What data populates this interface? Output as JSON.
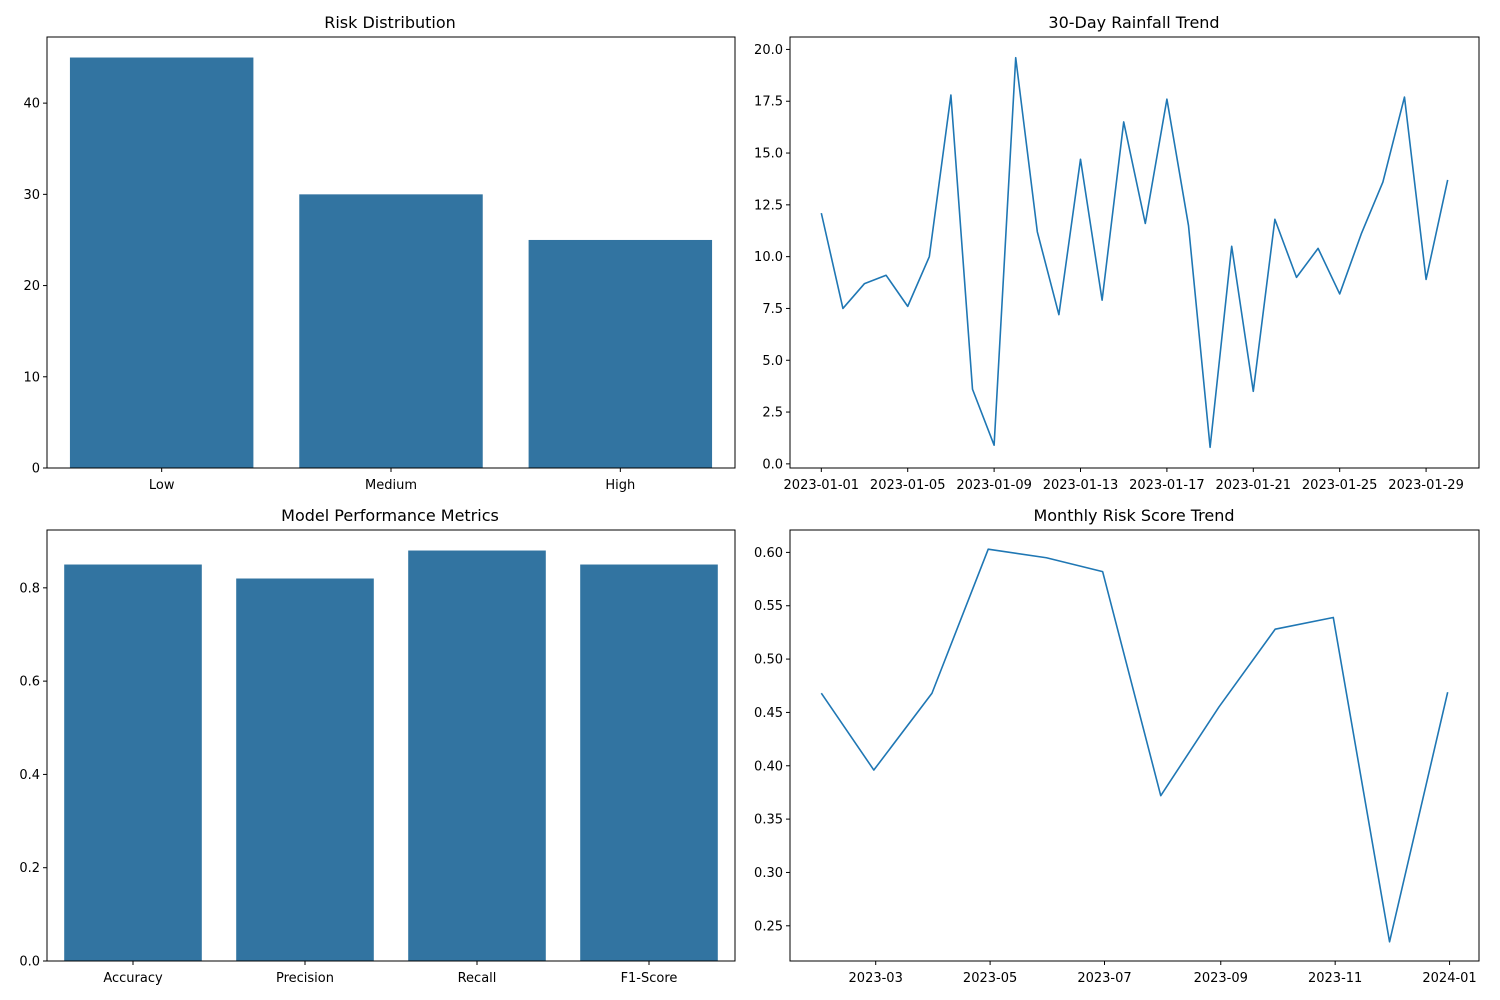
{
  "colors": {
    "bar": "#3274a1",
    "line": "#1f77b4",
    "axis": "#000000",
    "background": "#ffffff"
  },
  "chart_data": [
    {
      "type": "bar",
      "title": "Risk Distribution",
      "xlabel": "",
      "ylabel": "",
      "categories": [
        "Low",
        "Medium",
        "High"
      ],
      "values": [
        45,
        30,
        25
      ],
      "ylim": [
        0,
        47.25
      ],
      "yticks": [
        0,
        10,
        20,
        30,
        40
      ],
      "grid": false
    },
    {
      "type": "line",
      "title": "30-Day Rainfall Trend",
      "xlabel": "",
      "ylabel": "",
      "x": [
        "2023-01-01",
        "2023-01-02",
        "2023-01-03",
        "2023-01-04",
        "2023-01-05",
        "2023-01-06",
        "2023-01-07",
        "2023-01-08",
        "2023-01-09",
        "2023-01-10",
        "2023-01-11",
        "2023-01-12",
        "2023-01-13",
        "2023-01-14",
        "2023-01-15",
        "2023-01-16",
        "2023-01-17",
        "2023-01-18",
        "2023-01-19",
        "2023-01-20",
        "2023-01-21",
        "2023-01-22",
        "2023-01-23",
        "2023-01-24",
        "2023-01-25",
        "2023-01-26",
        "2023-01-27",
        "2023-01-28",
        "2023-01-29",
        "2023-01-30"
      ],
      "values": [
        12.1,
        7.5,
        8.7,
        9.1,
        7.6,
        10.0,
        17.8,
        3.6,
        0.9,
        19.6,
        11.2,
        7.2,
        14.7,
        7.9,
        16.5,
        11.6,
        17.6,
        11.5,
        0.8,
        10.5,
        3.5,
        11.8,
        9.0,
        10.4,
        8.2,
        11.1,
        13.6,
        17.7,
        8.9,
        13.7
      ],
      "ylim": [
        -0.2,
        20.6
      ],
      "yticks": [
        "0.0",
        "2.5",
        "5.0",
        "7.5",
        "10.0",
        "12.5",
        "15.0",
        "17.5",
        "20.0"
      ],
      "xticks": [
        "2023-01-01",
        "2023-01-05",
        "2023-01-09",
        "2023-01-13",
        "2023-01-17",
        "2023-01-21",
        "2023-01-25",
        "2023-01-29"
      ],
      "grid": false
    },
    {
      "type": "bar",
      "title": "Model Performance Metrics",
      "xlabel": "",
      "ylabel": "",
      "categories": [
        "Accuracy",
        "Precision",
        "Recall",
        "F1-Score"
      ],
      "values": [
        0.85,
        0.82,
        0.88,
        0.85
      ],
      "ylim": [
        0,
        0.924
      ],
      "yticks": [
        "0.0",
        "0.2",
        "0.4",
        "0.6",
        "0.8"
      ],
      "grid": false
    },
    {
      "type": "line",
      "title": "Monthly Risk Score Trend",
      "xlabel": "",
      "ylabel": "",
      "x": [
        "2023-01-31",
        "2023-02-28",
        "2023-03-31",
        "2023-04-30",
        "2023-05-31",
        "2023-06-30",
        "2023-07-31",
        "2023-08-31",
        "2023-09-30",
        "2023-10-31",
        "2023-11-30",
        "2023-12-31"
      ],
      "values": [
        0.468,
        0.396,
        0.468,
        0.603,
        0.595,
        0.582,
        0.372,
        0.455,
        0.528,
        0.539,
        0.235,
        0.469
      ],
      "ylim": [
        0.217,
        0.621
      ],
      "yticks": [
        "0.25",
        "0.30",
        "0.35",
        "0.40",
        "0.45",
        "0.50",
        "0.55",
        "0.60"
      ],
      "xticks": [
        "2023-03",
        "2023-05",
        "2023-07",
        "2023-09",
        "2023-11",
        "2024-01"
      ],
      "xrange": [
        "2023-01-31",
        "2023-12-31"
      ],
      "grid": false
    }
  ]
}
